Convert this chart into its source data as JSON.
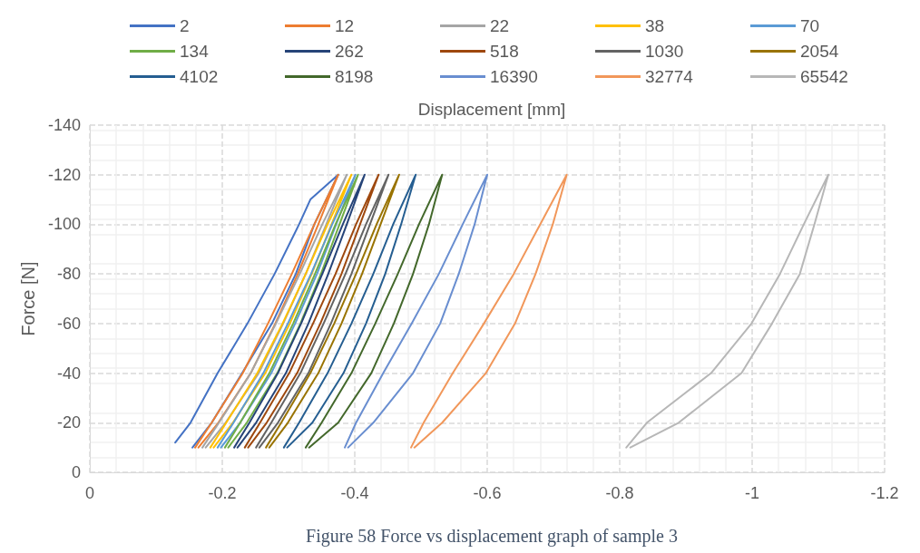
{
  "chart_data": {
    "type": "line",
    "xlabel": "Displacement [mm]",
    "ylabel": "Force [N]",
    "annotations": [
      "Figure 58 Force vs displacement graph of sample 3"
    ],
    "xlim": [
      0,
      -1.2
    ],
    "xticks": [
      0,
      -0.2,
      -0.4,
      -0.6,
      -0.8,
      -1,
      -1.2
    ],
    "ylim": [
      0,
      -140
    ],
    "yticks": [
      0,
      -20,
      -40,
      -60,
      -80,
      -100,
      -120,
      -140
    ],
    "grid": true,
    "legend": "top",
    "marker": "none",
    "line_style": "solid",
    "series": [
      {
        "name": "2",
        "color": "#4472c4",
        "x": [
          -0.129,
          -0.152,
          -0.193,
          -0.238,
          -0.279,
          -0.316,
          -0.333,
          -0.375,
          -0.339,
          -0.311,
          -0.275,
          -0.23,
          -0.184,
          -0.155
        ],
        "values": [
          -12,
          -20,
          -40,
          -60,
          -80,
          -100,
          -110,
          -120,
          -100,
          -80,
          -60,
          -40,
          -20,
          -10
        ]
      },
      {
        "name": "12",
        "color": "#ed7d31",
        "x": [
          -0.159,
          -0.184,
          -0.231,
          -0.269,
          -0.305,
          -0.339,
          -0.375,
          -0.345,
          -0.314,
          -0.28,
          -0.243,
          -0.194,
          -0.164
        ],
        "values": [
          -10,
          -20,
          -40,
          -60,
          -80,
          -100,
          -120,
          -100,
          -80,
          -60,
          -40,
          -20,
          -10
        ]
      },
      {
        "name": "22",
        "color": "#a5a5a5",
        "x": [
          -0.17,
          -0.195,
          -0.243,
          -0.281,
          -0.317,
          -0.351,
          -0.388,
          -0.357,
          -0.326,
          -0.292,
          -0.255,
          -0.205,
          -0.175
        ],
        "values": [
          -10,
          -20,
          -40,
          -60,
          -80,
          -100,
          -120,
          -100,
          -80,
          -60,
          -40,
          -20,
          -10
        ]
      },
      {
        "name": "38",
        "color": "#ffc000",
        "x": [
          -0.182,
          -0.206,
          -0.253,
          -0.291,
          -0.326,
          -0.359,
          -0.395,
          -0.365,
          -0.335,
          -0.302,
          -0.265,
          -0.216,
          -0.187
        ],
        "values": [
          -10,
          -20,
          -40,
          -60,
          -80,
          -100,
          -120,
          -100,
          -80,
          -60,
          -40,
          -20,
          -10
        ]
      },
      {
        "name": "70",
        "color": "#5b9bd5",
        "x": [
          -0.193,
          -0.217,
          -0.262,
          -0.299,
          -0.334,
          -0.366,
          -0.401,
          -0.372,
          -0.343,
          -0.31,
          -0.274,
          -0.227,
          -0.198
        ],
        "values": [
          -10,
          -20,
          -40,
          -60,
          -80,
          -100,
          -120,
          -100,
          -80,
          -60,
          -40,
          -20,
          -10
        ]
      },
      {
        "name": "134",
        "color": "#70ad47",
        "x": [
          -0.204,
          -0.227,
          -0.271,
          -0.307,
          -0.34,
          -0.371,
          -0.405,
          -0.377,
          -0.349,
          -0.318,
          -0.283,
          -0.237,
          -0.209
        ],
        "values": [
          -10,
          -20,
          -40,
          -60,
          -80,
          -100,
          -120,
          -100,
          -80,
          -60,
          -40,
          -20,
          -10
        ]
      },
      {
        "name": "262",
        "color": "#264478",
        "x": [
          -0.218,
          -0.241,
          -0.284,
          -0.319,
          -0.351,
          -0.382,
          -0.415,
          -0.388,
          -0.36,
          -0.33,
          -0.296,
          -0.251,
          -0.223
        ],
        "values": [
          -10,
          -20,
          -40,
          -60,
          -80,
          -100,
          -120,
          -100,
          -80,
          -60,
          -40,
          -20,
          -10
        ]
      },
      {
        "name": "518",
        "color": "#9e480e",
        "x": [
          -0.234,
          -0.257,
          -0.301,
          -0.337,
          -0.371,
          -0.402,
          -0.436,
          -0.408,
          -0.38,
          -0.348,
          -0.313,
          -0.267,
          -0.239
        ],
        "values": [
          -10,
          -20,
          -40,
          -60,
          -80,
          -100,
          -120,
          -100,
          -80,
          -60,
          -40,
          -20,
          -10
        ]
      },
      {
        "name": "1030",
        "color": "#636363",
        "x": [
          -0.251,
          -0.274,
          -0.318,
          -0.353,
          -0.386,
          -0.417,
          -0.451,
          -0.423,
          -0.395,
          -0.364,
          -0.33,
          -0.284,
          -0.256
        ],
        "values": [
          -10,
          -20,
          -40,
          -60,
          -80,
          -100,
          -120,
          -100,
          -80,
          -60,
          -40,
          -20,
          -10
        ]
      },
      {
        "name": "2054",
        "color": "#997300",
        "x": [
          -0.266,
          -0.289,
          -0.333,
          -0.369,
          -0.402,
          -0.433,
          -0.467,
          -0.439,
          -0.411,
          -0.38,
          -0.345,
          -0.299,
          -0.271
        ],
        "values": [
          -10,
          -20,
          -40,
          -60,
          -80,
          -100,
          -120,
          -100,
          -80,
          -60,
          -40,
          -20,
          -10
        ]
      },
      {
        "name": "4102",
        "color": "#255e91",
        "x": [
          -0.293,
          -0.316,
          -0.359,
          -0.395,
          -0.428,
          -0.458,
          -0.492,
          -0.47,
          -0.446,
          -0.417,
          -0.383,
          -0.336,
          -0.298
        ],
        "values": [
          -10,
          -20,
          -40,
          -60,
          -80,
          -100,
          -120,
          -100,
          -80,
          -60,
          -40,
          -20,
          -10
        ]
      },
      {
        "name": "8198",
        "color": "#43682b",
        "x": [
          -0.326,
          -0.35,
          -0.395,
          -0.431,
          -0.465,
          -0.497,
          -0.532,
          -0.512,
          -0.488,
          -0.459,
          -0.425,
          -0.375,
          -0.331
        ],
        "values": [
          -10,
          -20,
          -40,
          -60,
          -80,
          -100,
          -120,
          -100,
          -80,
          -60,
          -40,
          -20,
          -10
        ]
      },
      {
        "name": "16390",
        "color": "#698ed0",
        "x": [
          -0.385,
          -0.402,
          -0.443,
          -0.486,
          -0.527,
          -0.563,
          -0.6,
          -0.581,
          -0.557,
          -0.529,
          -0.488,
          -0.428,
          -0.39
        ],
        "values": [
          -10,
          -20,
          -40,
          -60,
          -80,
          -100,
          -120,
          -100,
          -80,
          -60,
          -40,
          -20,
          -10
        ]
      },
      {
        "name": "32774",
        "color": "#f1975a",
        "x": [
          -0.485,
          -0.504,
          -0.548,
          -0.595,
          -0.64,
          -0.68,
          -0.72,
          -0.699,
          -0.673,
          -0.642,
          -0.598,
          -0.532,
          -0.49
        ],
        "values": [
          -10,
          -20,
          -40,
          -60,
          -80,
          -100,
          -120,
          -100,
          -80,
          -60,
          -40,
          -20,
          -10
        ]
      },
      {
        "name": "65542",
        "color": "#b7b7b7",
        "x": [
          -0.81,
          -0.841,
          -0.938,
          -0.999,
          -1.042,
          -1.078,
          -1.115,
          -1.094,
          -1.072,
          -1.03,
          -0.984,
          -0.889,
          -0.816
        ],
        "values": [
          -10,
          -20,
          -40,
          -60,
          -80,
          -100,
          -120,
          -100,
          -80,
          -60,
          -40,
          -20,
          -10
        ]
      }
    ]
  }
}
